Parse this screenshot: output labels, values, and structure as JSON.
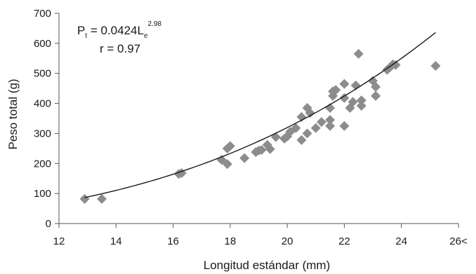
{
  "chart_data": {
    "type": "scatter",
    "xlabel": "Longitud estándar (mm)",
    "ylabel": "Peso total (g)",
    "xlim": [
      12,
      26
    ],
    "ylim": [
      0,
      700
    ],
    "x_ticks": [
      12,
      14,
      16,
      18,
      20,
      22,
      24,
      26
    ],
    "x_tick_labels": [
      "12",
      "14",
      "16",
      "18",
      "20",
      "22",
      "24",
      "26<"
    ],
    "y_ticks": [
      0,
      100,
      200,
      300,
      400,
      500,
      600,
      700
    ],
    "y_tick_labels": [
      "0",
      "100",
      "200",
      "300",
      "400",
      "500",
      "600",
      "700"
    ],
    "grid": false,
    "colors": {
      "points": "#8c8c8c",
      "fit": "#1a1a1a",
      "axis": "#555555"
    },
    "points": [
      {
        "x": 12.9,
        "y": 82
      },
      {
        "x": 13.5,
        "y": 82
      },
      {
        "x": 16.2,
        "y": 165
      },
      {
        "x": 16.3,
        "y": 168
      },
      {
        "x": 17.7,
        "y": 212
      },
      {
        "x": 17.9,
        "y": 198
      },
      {
        "x": 17.9,
        "y": 250
      },
      {
        "x": 18.0,
        "y": 258
      },
      {
        "x": 18.5,
        "y": 218
      },
      {
        "x": 18.9,
        "y": 238
      },
      {
        "x": 19.0,
        "y": 243
      },
      {
        "x": 19.1,
        "y": 245
      },
      {
        "x": 19.3,
        "y": 262
      },
      {
        "x": 19.4,
        "y": 248
      },
      {
        "x": 19.6,
        "y": 288
      },
      {
        "x": 19.9,
        "y": 283
      },
      {
        "x": 20.0,
        "y": 290
      },
      {
        "x": 20.1,
        "y": 305
      },
      {
        "x": 20.3,
        "y": 318
      },
      {
        "x": 20.5,
        "y": 278
      },
      {
        "x": 20.5,
        "y": 355
      },
      {
        "x": 20.7,
        "y": 300
      },
      {
        "x": 20.7,
        "y": 385
      },
      {
        "x": 20.8,
        "y": 368
      },
      {
        "x": 21.0,
        "y": 318
      },
      {
        "x": 21.2,
        "y": 338
      },
      {
        "x": 21.5,
        "y": 325
      },
      {
        "x": 21.5,
        "y": 345
      },
      {
        "x": 21.5,
        "y": 385
      },
      {
        "x": 21.6,
        "y": 425
      },
      {
        "x": 21.6,
        "y": 440
      },
      {
        "x": 21.7,
        "y": 445
      },
      {
        "x": 22.0,
        "y": 325
      },
      {
        "x": 22.0,
        "y": 418
      },
      {
        "x": 22.0,
        "y": 465
      },
      {
        "x": 22.2,
        "y": 385
      },
      {
        "x": 22.3,
        "y": 405
      },
      {
        "x": 22.4,
        "y": 460
      },
      {
        "x": 22.5,
        "y": 565
      },
      {
        "x": 22.6,
        "y": 392
      },
      {
        "x": 22.6,
        "y": 410
      },
      {
        "x": 23.0,
        "y": 475
      },
      {
        "x": 23.1,
        "y": 425
      },
      {
        "x": 23.1,
        "y": 455
      },
      {
        "x": 23.5,
        "y": 512
      },
      {
        "x": 23.6,
        "y": 520
      },
      {
        "x": 23.7,
        "y": 530
      },
      {
        "x": 23.8,
        "y": 528
      },
      {
        "x": 25.2,
        "y": 525
      }
    ],
    "fit": {
      "type": "power",
      "a": 0.0424,
      "b": 2.98,
      "x_range": [
        12.9,
        25.2
      ]
    },
    "annotations": {
      "eq_main": "P",
      "eq_sub1": "t",
      "eq_mid": " = 0.0424L",
      "eq_sub2": "e",
      "eq_sup": "2.98",
      "r_text": "r = 0.97"
    }
  }
}
